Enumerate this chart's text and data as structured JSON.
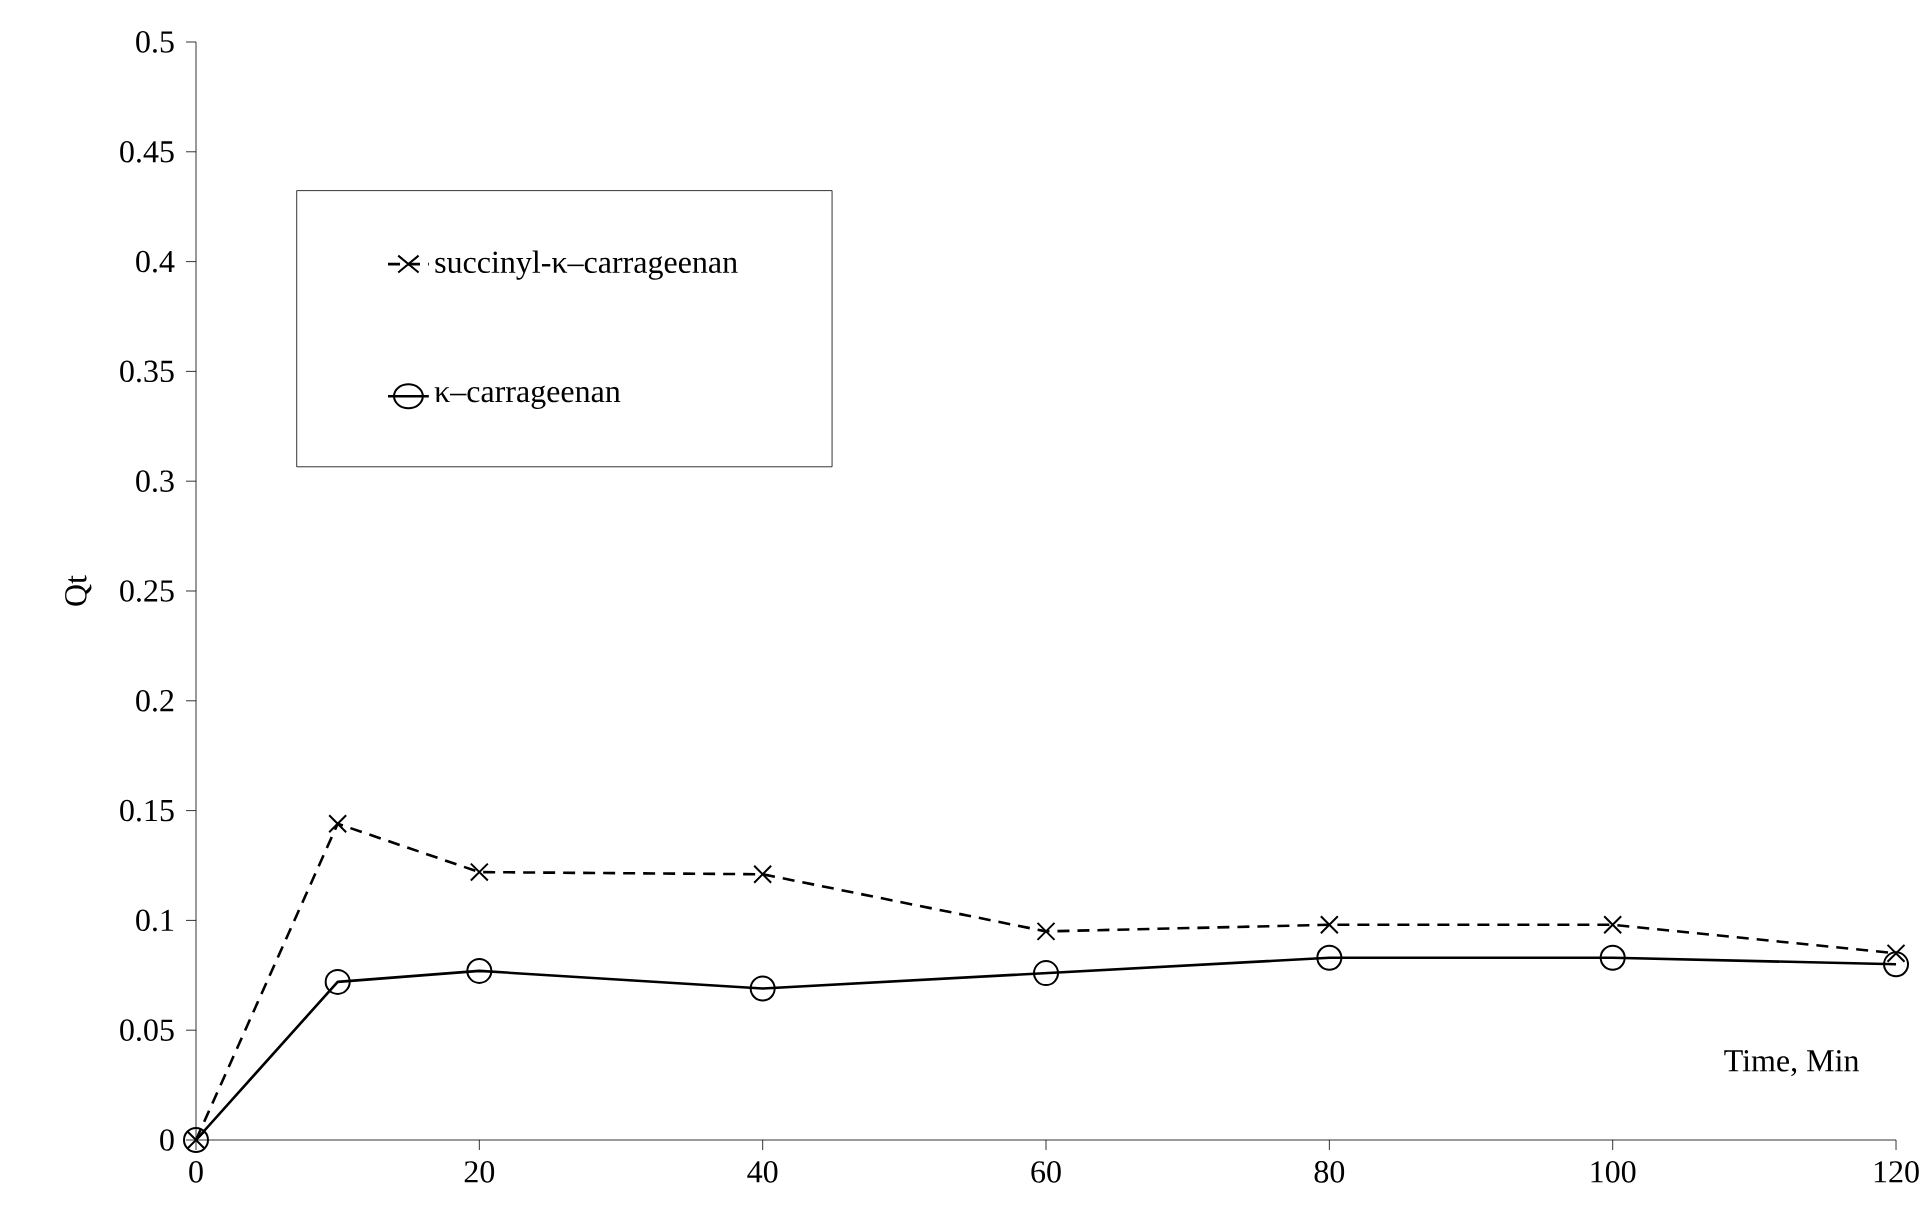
{
  "chart_data": {
    "type": "line",
    "xlabel": "Time, Min",
    "ylabel": "Qt",
    "x": [
      0,
      10,
      20,
      40,
      60,
      80,
      100,
      120
    ],
    "series": [
      {
        "name": "succinyl-κ–carrageenan",
        "color": "#000000",
        "marker": "cross",
        "line_style": "dashed",
        "values": [
          0,
          0.144,
          0.122,
          0.121,
          0.095,
          0.098,
          0.098,
          0.085
        ]
      },
      {
        "name": "κ–carrageenan",
        "color": "#000000",
        "marker": "circle",
        "line_style": "solid",
        "values": [
          0,
          0.072,
          0.077,
          0.069,
          0.076,
          0.083,
          0.083,
          0.08
        ]
      }
    ],
    "xlim": [
      0,
      120
    ],
    "xticks": [
      0,
      20,
      40,
      60,
      80,
      100,
      120
    ],
    "ylim": [
      0,
      0.5
    ],
    "yticks": [
      0,
      0.05,
      0.1,
      0.15,
      0.2,
      0.25,
      0.3,
      0.35,
      0.4,
      0.45,
      0.5
    ],
    "grid": false,
    "legend": "top left"
  }
}
